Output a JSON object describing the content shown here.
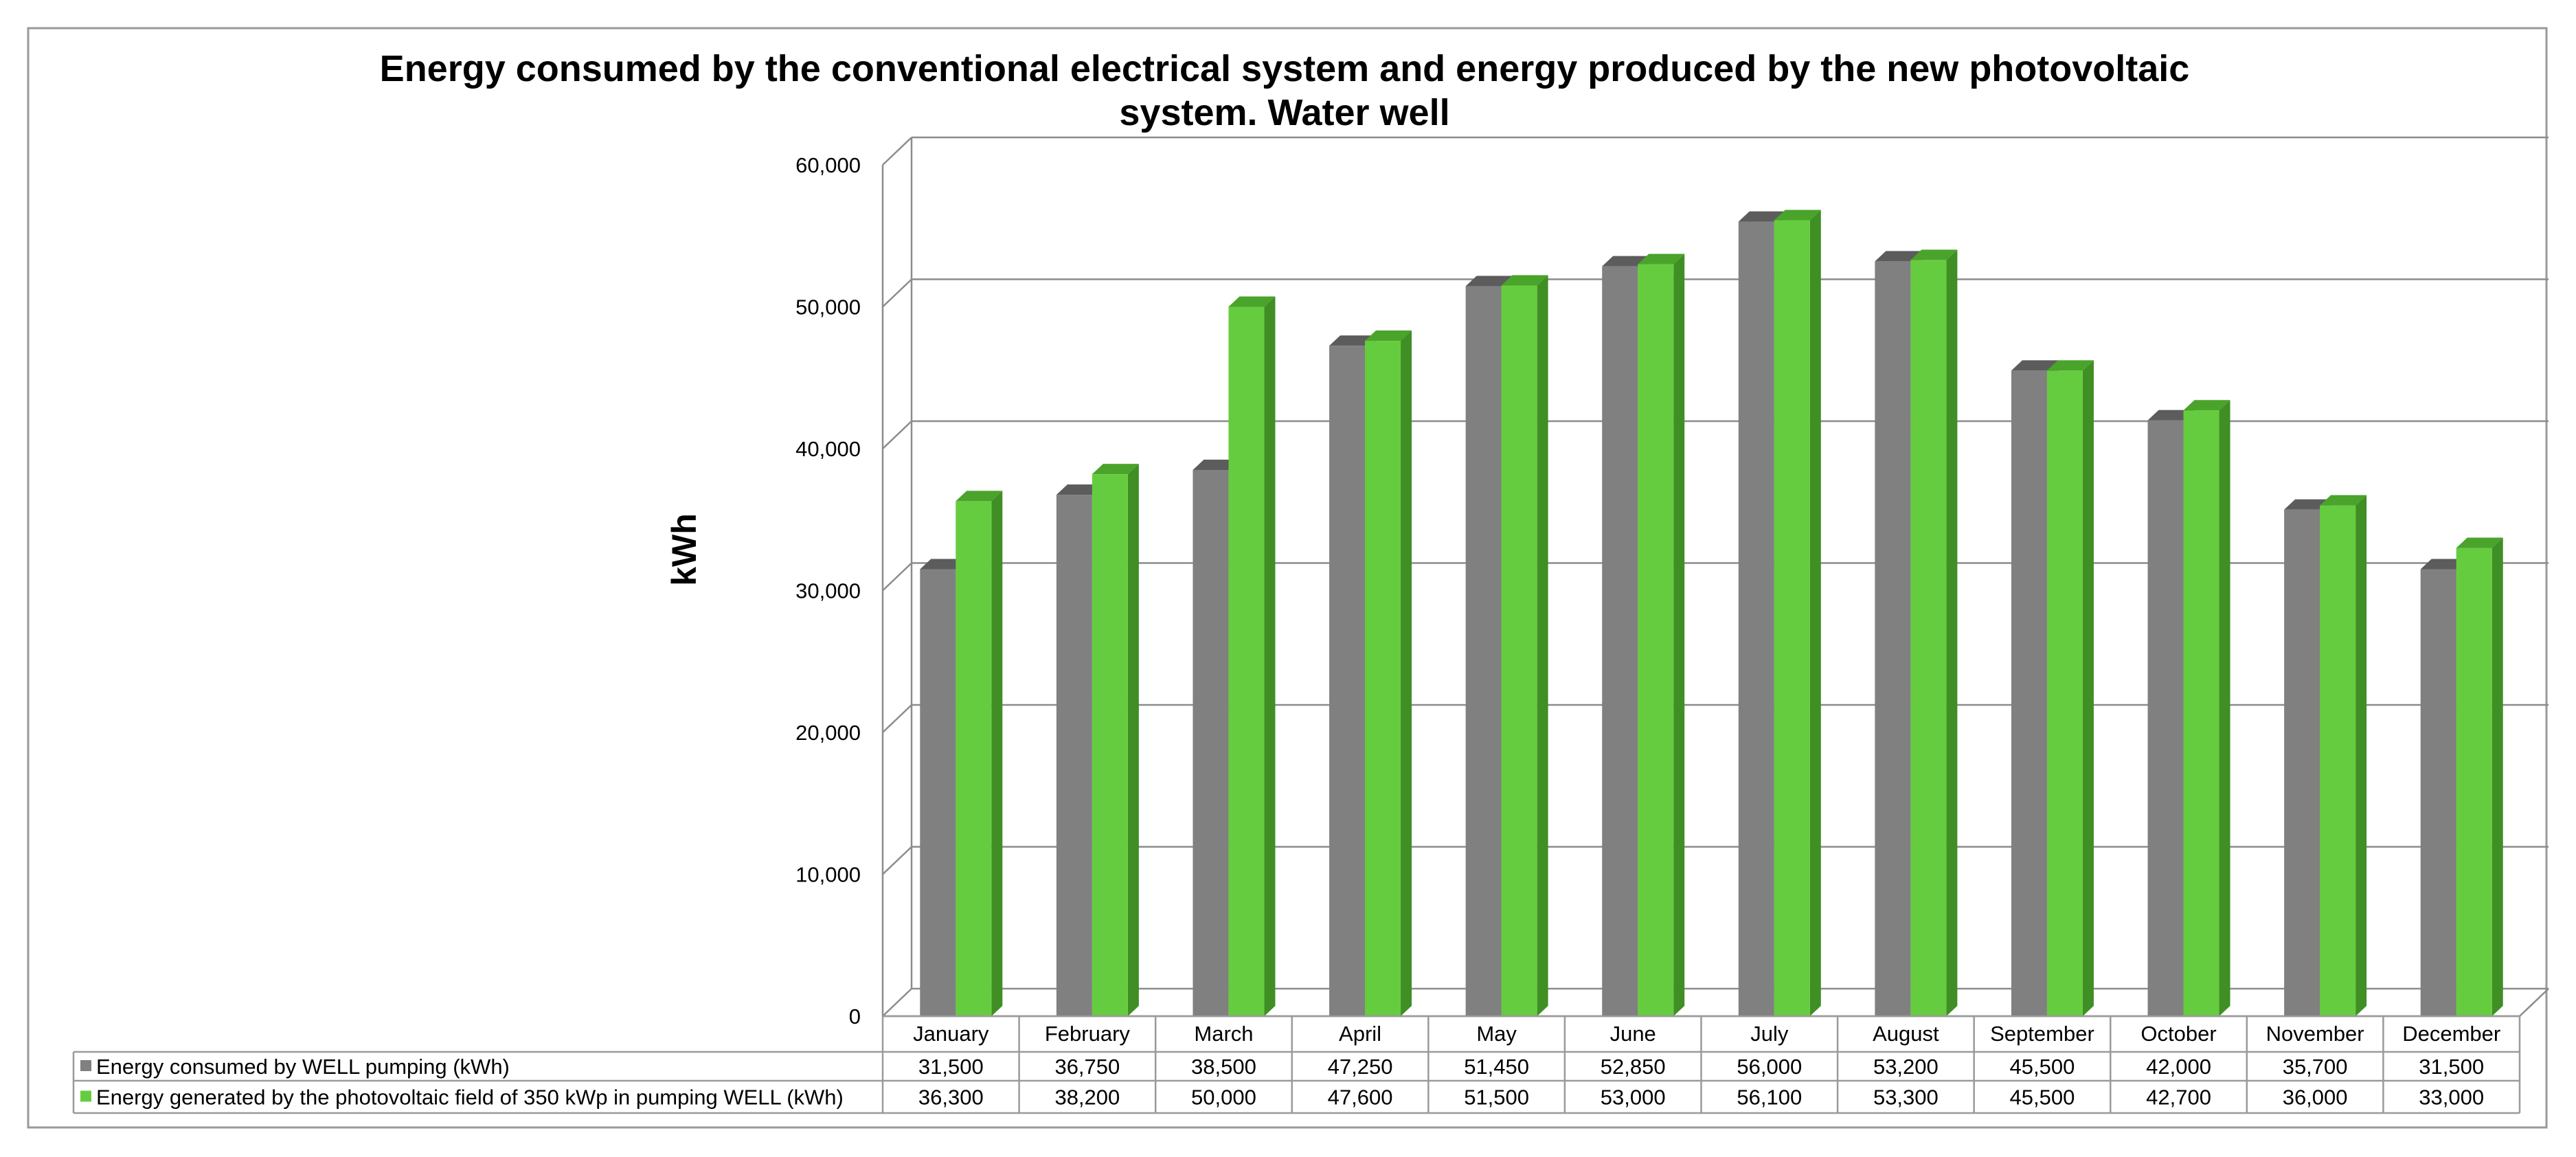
{
  "chart_data": {
    "type": "bar",
    "title_lines": [
      "Energy consumed by the conventional electrical system and energy produced by the new photovoltaic",
      "system. Water well"
    ],
    "ylabel": "kWh",
    "xlabel": "",
    "ylim": [
      0,
      60000
    ],
    "yticks": [
      0,
      10000,
      20000,
      30000,
      40000,
      50000,
      60000
    ],
    "ytick_labels": [
      "0",
      "10,000",
      "20,000",
      "30,000",
      "40,000",
      "50,000",
      "60,000"
    ],
    "grid": true,
    "categories": [
      "January",
      "February",
      "March",
      "April",
      "May",
      "June",
      "July",
      "August",
      "September",
      "October",
      "November",
      "December"
    ],
    "series": [
      {
        "name": "Energy consumed by WELL pumping (kWh)",
        "color": "#808080",
        "values": [
          31500,
          36750,
          38500,
          47250,
          51450,
          52850,
          56000,
          53200,
          45500,
          42000,
          35700,
          31500
        ],
        "value_labels": [
          "31,500",
          "36,750",
          "38,500",
          "47,250",
          "51,450",
          "52,850",
          "56,000",
          "53,200",
          "45,500",
          "42,000",
          "35,700",
          "31,500"
        ]
      },
      {
        "name": "Energy generated by the photovoltaic field of 350 kWp in pumping WELL (kWh)",
        "color": "#66cc3f",
        "values": [
          36300,
          38200,
          50000,
          47600,
          51500,
          53000,
          56100,
          53300,
          45500,
          42700,
          36000,
          33000
        ],
        "value_labels": [
          "36,300",
          "38,200",
          "50,000",
          "47,600",
          "51,500",
          "53,000",
          "56,100",
          "53,300",
          "45,500",
          "42,700",
          "36,000",
          "33,000"
        ]
      }
    ]
  }
}
